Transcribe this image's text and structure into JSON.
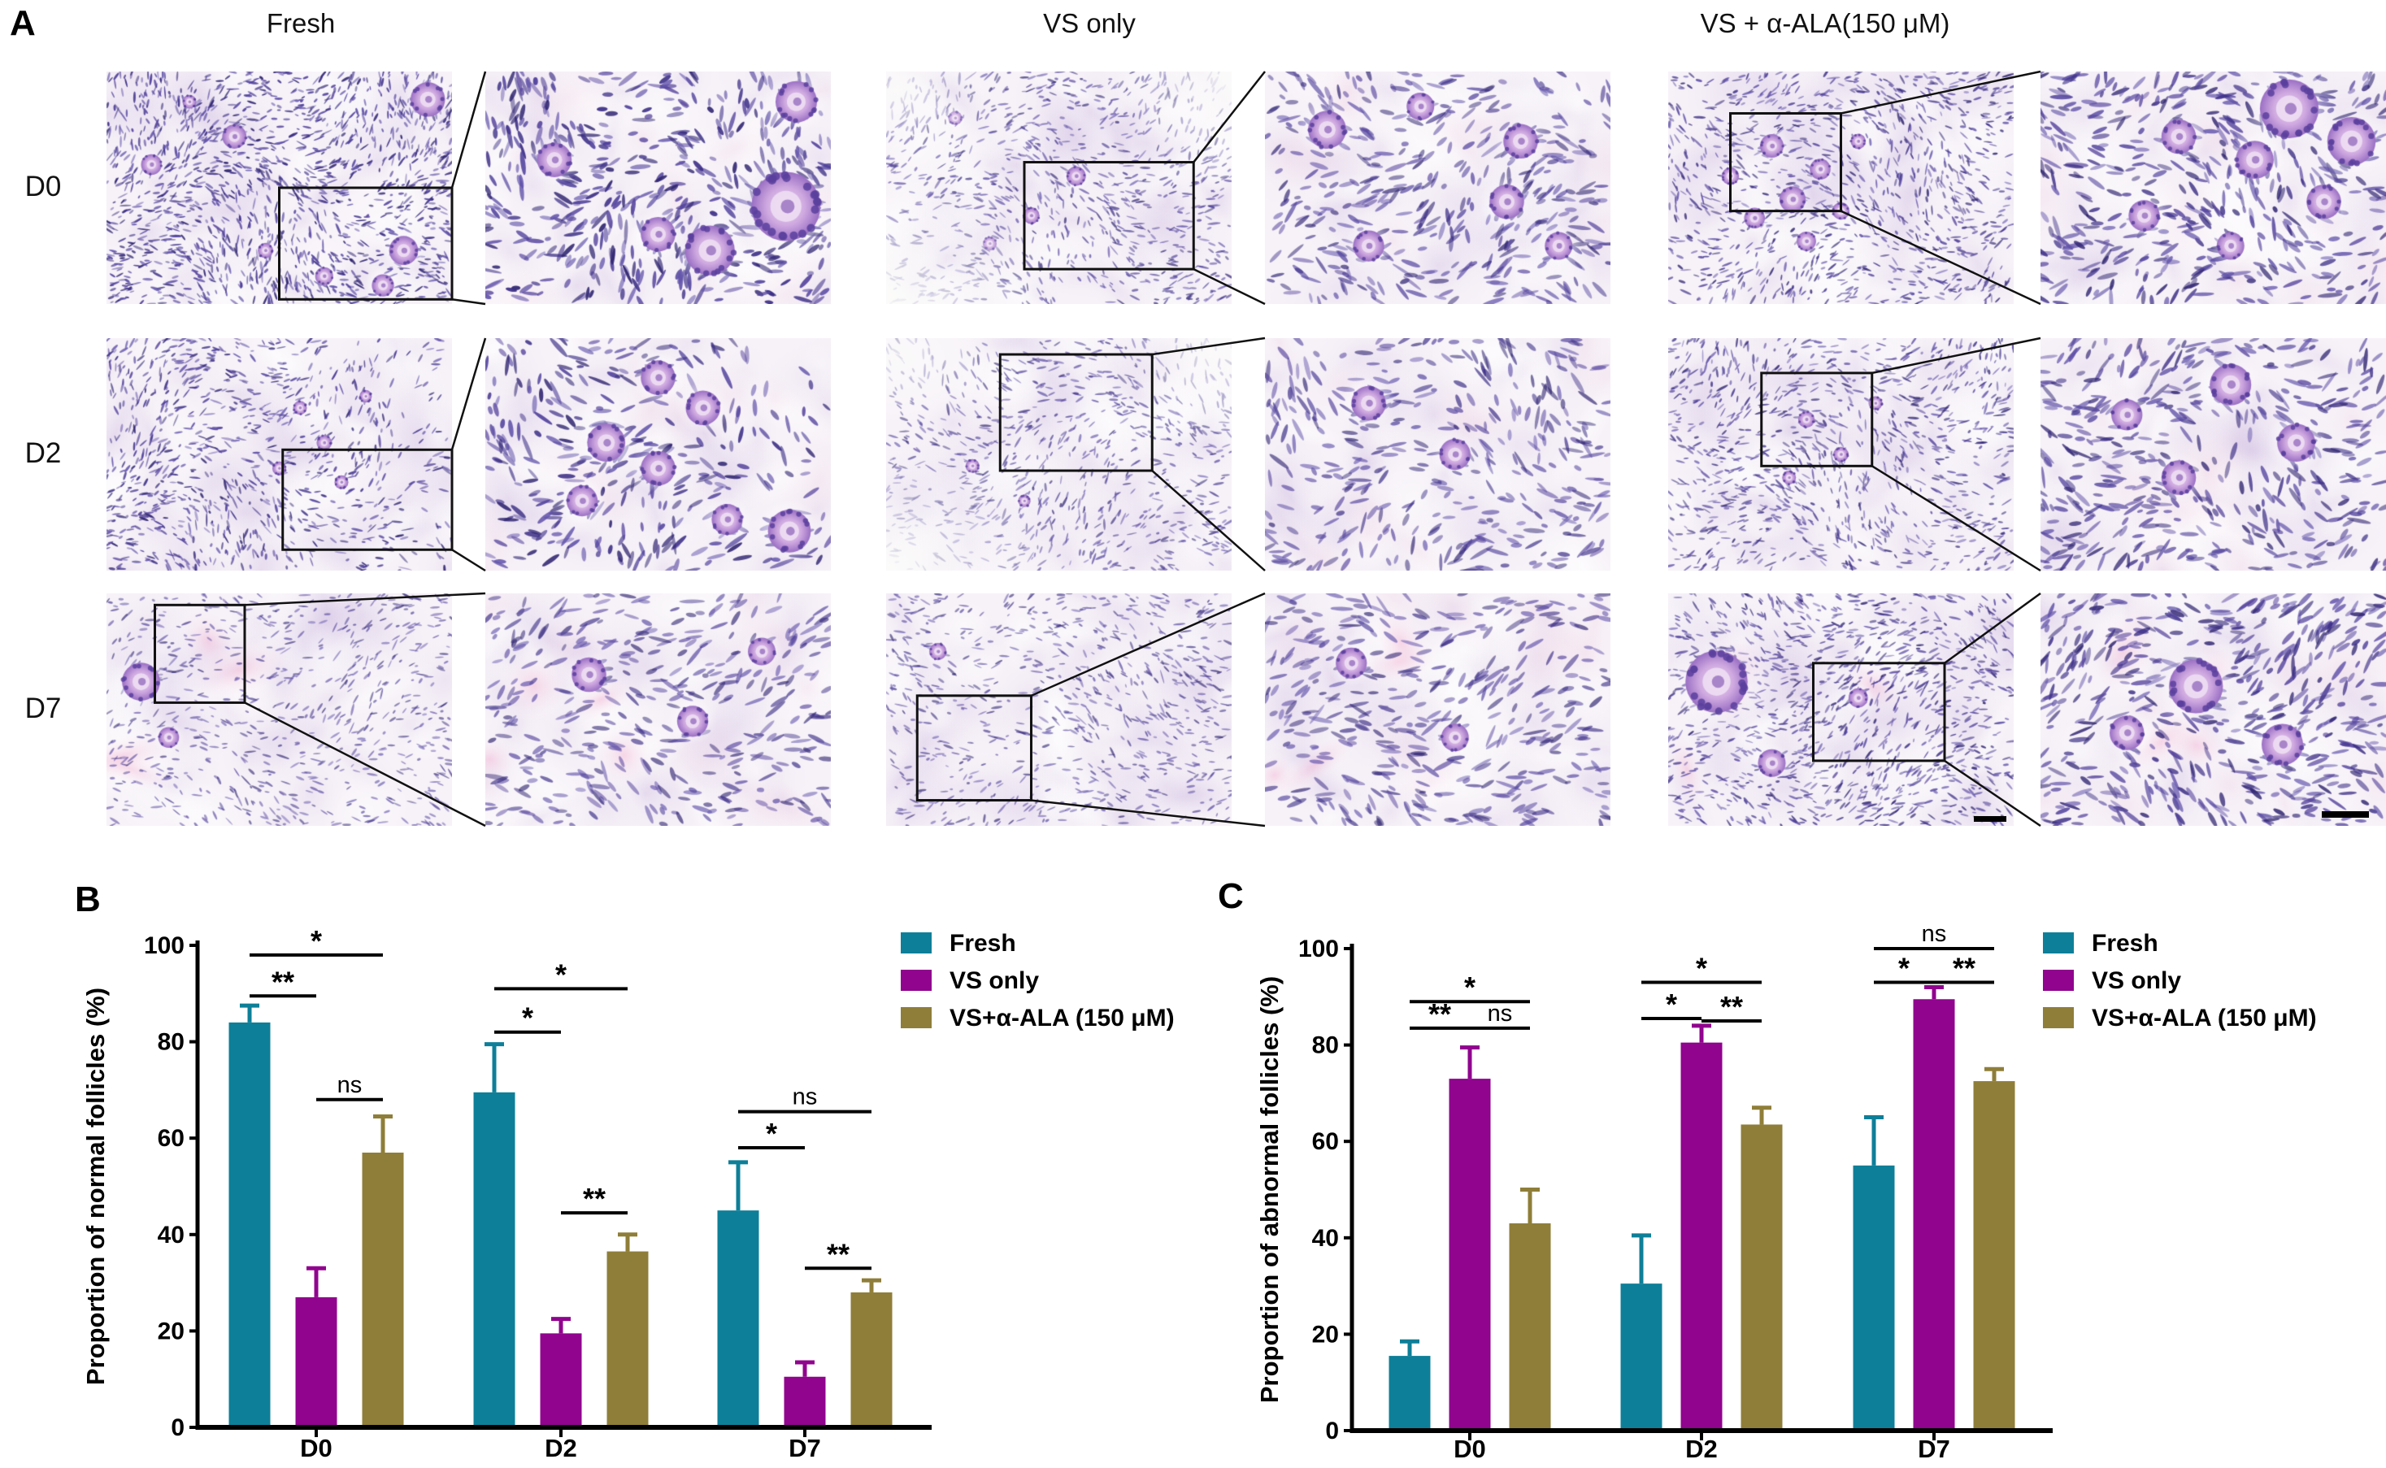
{
  "panelA": {
    "label": "A",
    "columns": [
      "Fresh",
      "VS only",
      "VS + α-ALA(150 μM)"
    ],
    "rows": [
      "D0",
      "D2",
      "D7"
    ],
    "image_kind": "histology-micrograph-with-magnified-inset"
  },
  "panelB": {
    "label": "B"
  },
  "panelC": {
    "label": "C"
  },
  "colors": {
    "fresh": "#0e7f98",
    "vs_only": "#90048e",
    "vs_ala": "#8f7e39"
  },
  "chart_data": [
    {
      "id": "B",
      "type": "bar",
      "title": "",
      "ylabel": "Proportion of normal follicles (%)",
      "xlabel": "",
      "categories": [
        "D0",
        "D2",
        "D7"
      ],
      "ylim": [
        0,
        100
      ],
      "yticks": [
        0,
        20,
        40,
        60,
        80,
        100
      ],
      "grid": false,
      "legend_position": "top-right",
      "series": [
        {
          "name": "Fresh",
          "color": "#0e7f98",
          "values": [
            84,
            69.5,
            45
          ],
          "errors": [
            3.5,
            10,
            10
          ]
        },
        {
          "name": "VS only",
          "color": "#90048e",
          "values": [
            27,
            19.5,
            10.5
          ],
          "errors": [
            6,
            3,
            3
          ]
        },
        {
          "name": "VS+α-ALA (150 μM)",
          "color": "#8f7e39",
          "values": [
            57,
            36.5,
            28
          ],
          "errors": [
            7.5,
            3.5,
            2.5
          ]
        }
      ],
      "significance": [
        {
          "category": "D0",
          "between": [
            "Fresh",
            "VS only"
          ],
          "label": "**",
          "height": 89.5
        },
        {
          "category": "D0",
          "between": [
            "Fresh",
            "VS+α-ALA (150 μM)"
          ],
          "label": "*",
          "height": 98
        },
        {
          "category": "D0",
          "between": [
            "VS only",
            "VS+α-ALA (150 μM)"
          ],
          "label": "ns",
          "height": 68
        },
        {
          "category": "D2",
          "between": [
            "Fresh",
            "VS only"
          ],
          "label": "*",
          "height": 82
        },
        {
          "category": "D2",
          "between": [
            "Fresh",
            "VS+α-ALA (150 μM)"
          ],
          "label": "*",
          "height": 91
        },
        {
          "category": "D2",
          "between": [
            "VS only",
            "VS+α-ALA (150 μM)"
          ],
          "label": "**",
          "height": 44.5
        },
        {
          "category": "D7",
          "between": [
            "Fresh",
            "VS only"
          ],
          "label": "*",
          "height": 58
        },
        {
          "category": "D7",
          "between": [
            "Fresh",
            "VS+α-ALA (150 μM)"
          ],
          "label": "ns",
          "height": 65.5
        },
        {
          "category": "D7",
          "between": [
            "VS only",
            "VS+α-ALA (150 μM)"
          ],
          "label": "**",
          "height": 33
        }
      ]
    },
    {
      "id": "C",
      "type": "bar",
      "title": "",
      "ylabel": "Proportion of abnormal follicles (%)",
      "xlabel": "",
      "categories": [
        "D0",
        "D2",
        "D7"
      ],
      "ylim": [
        0,
        100
      ],
      "yticks": [
        0,
        20,
        40,
        60,
        80,
        100
      ],
      "grid": false,
      "legend_position": "top-right",
      "series": [
        {
          "name": "Fresh",
          "color": "#0e7f98",
          "values": [
            15.5,
            30.5,
            55
          ],
          "errors": [
            3,
            10,
            10
          ]
        },
        {
          "name": "VS only",
          "color": "#90048e",
          "values": [
            73,
            80.5,
            89.5
          ],
          "errors": [
            6.5,
            3.5,
            2.5
          ]
        },
        {
          "name": "VS+α-ALA (150 μM)",
          "color": "#8f7e39",
          "values": [
            43,
            63.5,
            72.5
          ],
          "errors": [
            7,
            3.5,
            2.5
          ]
        }
      ],
      "significance": [
        {
          "category": "D0",
          "between": [
            "Fresh",
            "VS only"
          ],
          "label": "**",
          "height": 83.5
        },
        {
          "category": "D0",
          "between": [
            "VS only",
            "VS+α-ALA (150 μM)"
          ],
          "label": "ns",
          "height": 83.5
        },
        {
          "category": "D0",
          "between": [
            "Fresh",
            "VS+α-ALA (150 μM)"
          ],
          "label": "*",
          "height": 89
        },
        {
          "category": "D2",
          "between": [
            "Fresh",
            "VS only"
          ],
          "label": "*",
          "height": 85.5
        },
        {
          "category": "D2",
          "between": [
            "VS only",
            "VS+α-ALA (150 μM)"
          ],
          "label": "**",
          "height": 85
        },
        {
          "category": "D2",
          "between": [
            "Fresh",
            "VS+α-ALA (150 μM)"
          ],
          "label": "*",
          "height": 93
        },
        {
          "category": "D7",
          "between": [
            "Fresh",
            "VS only"
          ],
          "label": "*",
          "height": 93
        },
        {
          "category": "D7",
          "between": [
            "VS only",
            "VS+α-ALA (150 μM)"
          ],
          "label": "**",
          "height": 93
        },
        {
          "category": "D7",
          "between": [
            "Fresh",
            "VS+α-ALA (150 μM)"
          ],
          "label": "ns",
          "height": 100
        }
      ]
    }
  ]
}
